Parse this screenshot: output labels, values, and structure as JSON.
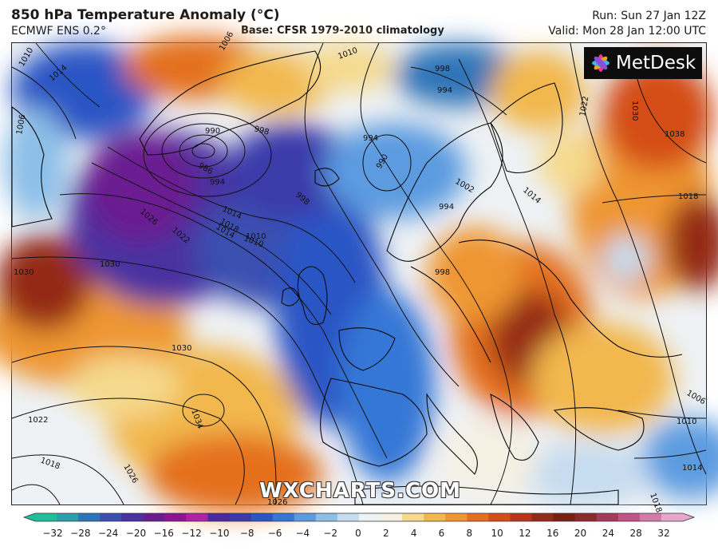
{
  "header": {
    "title": "850 hPa Temperature Anomaly (°C)",
    "model": "ECMWF ENS 0.2°",
    "base": "Base: CFSR 1979-2010 climatology",
    "run": "Run: Sun 27 Jan 12Z",
    "valid": "Valid: Mon 28 Jan 12:00 UTC"
  },
  "logo": {
    "text": "MetDesk"
  },
  "watermark": {
    "text": "WXCHARTS.COM"
  },
  "isobars": {
    "labels": [
      "1010",
      "1014",
      "1006",
      "1006",
      "1010",
      "990",
      "986",
      "994",
      "998",
      "998",
      "1010",
      "1014",
      "1022",
      "1026",
      "1030",
      "1030",
      "1030",
      "1034",
      "1022",
      "1018",
      "1026",
      "1018",
      "1014",
      "1010",
      "998",
      "994",
      "994",
      "990",
      "994",
      "1002",
      "1014",
      "1022",
      "1030",
      "1038",
      "1018",
      "1006",
      "1010",
      "1014",
      "1018",
      "998",
      "1026"
    ]
  },
  "legend": {
    "colors": [
      "#1fbf9a",
      "#2a9fa8",
      "#2d74b8",
      "#3b4fb0",
      "#4a32a0",
      "#6a1d90",
      "#8e1592",
      "#b021a6",
      "#4a2a9e",
      "#3a3aaa",
      "#2c55c4",
      "#3677d6",
      "#5b9be0",
      "#8cbfe8",
      "#c6dcef",
      "#eef2f5",
      "#f5f0e2",
      "#f5d98c",
      "#f2b84d",
      "#ee9632",
      "#e4701f",
      "#d44e18",
      "#b8351a",
      "#942a18",
      "#7a1f14",
      "#8a2a2a",
      "#a43a5a",
      "#c05585",
      "#d47aa8",
      "#e6a8c8"
    ],
    "ticks": [
      "−32",
      "−28",
      "−24",
      "−20",
      "−16",
      "−12",
      "−10",
      "−8",
      "−6",
      "−4",
      "−2",
      "0",
      "2",
      "4",
      "6",
      "8",
      "10",
      "12",
      "16",
      "20",
      "24",
      "28",
      "32"
    ]
  }
}
